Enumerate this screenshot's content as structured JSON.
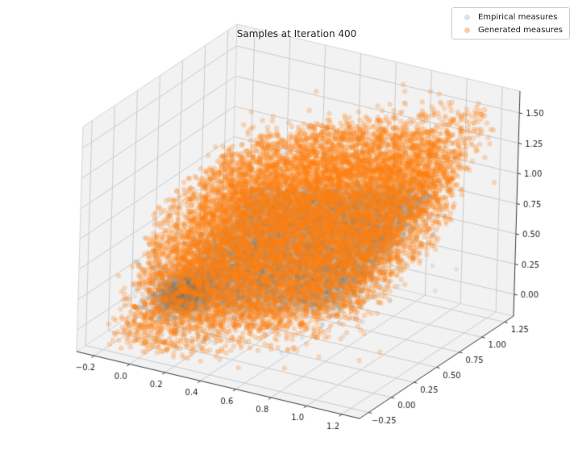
{
  "chart_data": {
    "type": "scatter",
    "subtype": "scatter3d",
    "title": "Samples at Iteration 400",
    "grid": true,
    "seed": 7,
    "axes": {
      "x": {
        "range": [
          -0.3,
          1.3
        ],
        "tick_values": [
          -0.2,
          0.0,
          0.2,
          0.4,
          0.6,
          0.8,
          1.0,
          1.2
        ],
        "tick_labels": [
          "−0.2",
          "0.0",
          "0.2",
          "0.4",
          "0.6",
          "0.8",
          "1.0",
          "1.2"
        ]
      },
      "y": {
        "range": [
          -0.35,
          1.35
        ],
        "tick_values": [
          -0.25,
          0.0,
          0.25,
          0.5,
          0.75,
          1.0,
          1.25
        ],
        "tick_labels": [
          "−0.25",
          "0.00",
          "0.25",
          "0.50",
          "0.75",
          "1.00",
          "1.25"
        ]
      },
      "z": {
        "range": [
          -0.18,
          1.68
        ],
        "tick_values": [
          0.0,
          0.25,
          0.5,
          0.75,
          1.0,
          1.25,
          1.5
        ],
        "tick_labels": [
          "0.00",
          "0.25",
          "0.50",
          "0.75",
          "1.00",
          "1.25",
          "1.50"
        ]
      }
    },
    "legend": {
      "position": "upper right"
    },
    "series": [
      {
        "name": "Empirical measures",
        "color": "#1f77b4",
        "alpha": 0.11,
        "marker": "circle",
        "marker_radius": 3.0,
        "count": 9000,
        "distribution": {
          "kind": "plane",
          "u_range": [
            0,
            1
          ],
          "v_range": [
            0,
            1
          ],
          "plane": {
            "z0": 0.13,
            "zu": 0.36,
            "zv": 0.44
          },
          "z_noise": 0.05,
          "xy_noise": 0.03,
          "tail_frac": 0.12,
          "tail_z_noise": 0.16,
          "tail_xy_noise": 0.1,
          "blob": {
            "frac": 0.15,
            "center": [
              0.07,
              0.1
            ],
            "sigma": 0.06
          }
        }
      },
      {
        "name": "Generated measures",
        "color": "#ff7f0e",
        "alpha": 0.26,
        "marker": "circle",
        "marker_radius": 3.2,
        "count": 13000,
        "distribution": {
          "kind": "sheet+shell",
          "sheet": {
            "frac": 0.58,
            "u_range": [
              -0.18,
              1.18
            ],
            "v_range": [
              -0.18,
              1.18
            ],
            "plane": {
              "z0": 0.07,
              "zu": 0.58,
              "zv": 0.58
            },
            "z_noise": 0.17,
            "xy_noise": 0.05
          },
          "shell": {
            "frac": 0.42,
            "center": [
              0.5,
              0.5,
              0.72
            ],
            "axes": {
              "diag": 0.95,
              "perp": 0.75,
              "vert": 0.55
            },
            "radius_pow": 0.35
          }
        }
      }
    ],
    "style": {
      "background": "#ffffff",
      "pane_color": "#f2f2f2",
      "grid_color": "#cccccc",
      "box_edge_color": "#d6d6d6",
      "spine_color": "#3a3a3a",
      "tick_label_color": "#262626",
      "title_color": "#262626"
    }
  }
}
